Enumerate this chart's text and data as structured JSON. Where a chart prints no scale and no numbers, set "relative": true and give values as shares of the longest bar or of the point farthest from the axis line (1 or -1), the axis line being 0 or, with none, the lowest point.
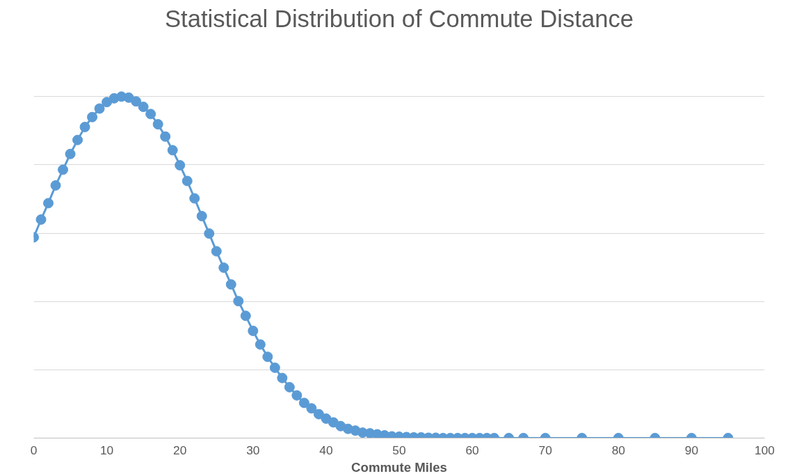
{
  "chart_data": {
    "type": "line",
    "title": "Statistical Distribution of Commute Distance",
    "xlabel": "Commute Miles",
    "relative": true,
    "xlim": [
      0,
      100
    ],
    "xticks": [
      0,
      10,
      20,
      30,
      40,
      50,
      60,
      70,
      80,
      90,
      100
    ],
    "grid": "y",
    "marker": "circle",
    "line_style": "solid",
    "series": [
      {
        "color": "#5b9bd5",
        "x": [
          0,
          1,
          2,
          3,
          4,
          5,
          6,
          7,
          8,
          9,
          10,
          11,
          12,
          13,
          14,
          15,
          16,
          17,
          18,
          19,
          20,
          21,
          22,
          23,
          24,
          25,
          26,
          27,
          28,
          29,
          30,
          31,
          32,
          33,
          34,
          35,
          36,
          37,
          38,
          39,
          40,
          41,
          42,
          43,
          44,
          45,
          46,
          47,
          48,
          49,
          50,
          51,
          52,
          53,
          54,
          55,
          56,
          57,
          58,
          59,
          60,
          61,
          62,
          63,
          65,
          67,
          70,
          75,
          80,
          85,
          90,
          95
        ],
        "values": [
          0.588,
          0.64,
          0.688,
          0.74,
          0.786,
          0.832,
          0.873,
          0.911,
          0.94,
          0.965,
          0.984,
          0.995,
          1,
          0.997,
          0.986,
          0.97,
          0.949,
          0.919,
          0.883,
          0.843,
          0.799,
          0.753,
          0.702,
          0.65,
          0.599,
          0.547,
          0.499,
          0.45,
          0.401,
          0.358,
          0.314,
          0.274,
          0.238,
          0.206,
          0.176,
          0.149,
          0.125,
          0.103,
          0.087,
          0.07,
          0.057,
          0.046,
          0.035,
          0.027,
          0.022,
          0.016,
          0.014,
          0.011,
          0.008,
          0.005,
          0.004,
          0.003,
          0.002,
          0.002,
          0.001,
          0.001,
          0,
          0,
          0,
          0,
          0,
          0,
          0,
          0,
          0,
          0,
          0,
          0,
          0,
          0,
          0,
          0
        ]
      }
    ]
  }
}
